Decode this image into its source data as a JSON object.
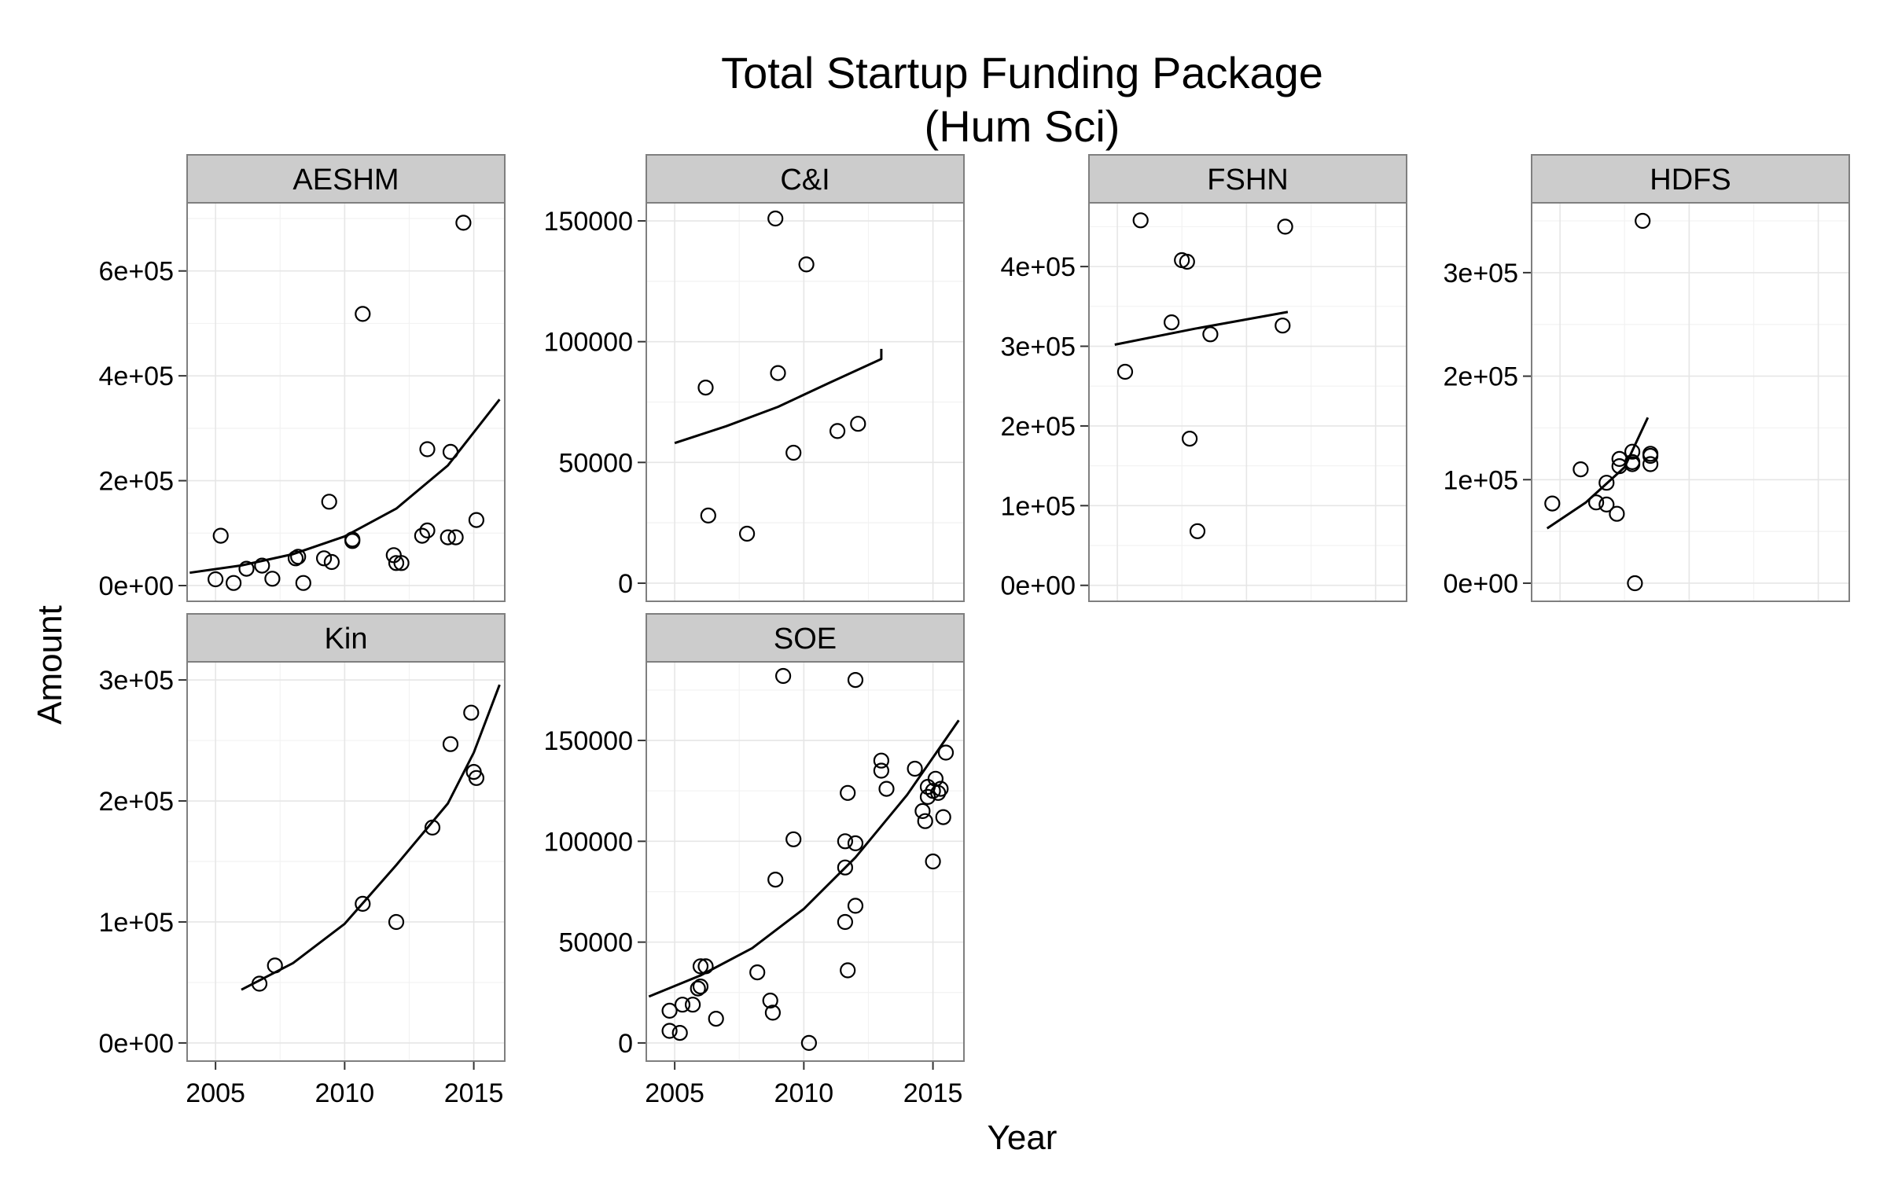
{
  "chart_data": {
    "type": "scatter",
    "title": "Total Startup Funding Package\n(Hum Sci)",
    "xlabel": "Year",
    "ylabel": "Amount",
    "grid": true,
    "xlim": [
      2003.9,
      2016.2
    ],
    "x_ticks": [
      2005,
      2010,
      2015
    ],
    "x_tick_labels": [
      "2005",
      "2010",
      "2015"
    ],
    "facets": [
      {
        "name": "AESHM",
        "ylim": [
          -30000,
          730000
        ],
        "y_ticks": [
          0,
          200000,
          400000,
          600000
        ],
        "y_tick_labels": [
          "0e+00",
          "2e+05",
          "4e+05",
          "6e+05"
        ],
        "points": [
          [
            2005.0,
            12000
          ],
          [
            2005.2,
            95000
          ],
          [
            2005.7,
            5000
          ],
          [
            2006.2,
            32000
          ],
          [
            2006.8,
            38000
          ],
          [
            2007.2,
            13000
          ],
          [
            2008.1,
            52000
          ],
          [
            2008.2,
            55000
          ],
          [
            2008.4,
            5000
          ],
          [
            2009.2,
            52000
          ],
          [
            2009.4,
            160000
          ],
          [
            2009.5,
            45000
          ],
          [
            2010.3,
            88000
          ],
          [
            2010.3,
            85000
          ],
          [
            2010.7,
            518000
          ],
          [
            2011.9,
            58000
          ],
          [
            2012.0,
            43000
          ],
          [
            2012.2,
            43000
          ],
          [
            2013.0,
            95000
          ],
          [
            2013.2,
            105000
          ],
          [
            2013.2,
            260000
          ],
          [
            2014.0,
            92000
          ],
          [
            2014.1,
            255000
          ],
          [
            2014.3,
            92000
          ],
          [
            2014.6,
            692000
          ],
          [
            2015.1,
            125000
          ]
        ],
        "fit": [
          [
            2004.0,
            24400
          ],
          [
            2006.0,
            38300
          ],
          [
            2008.0,
            60000
          ],
          [
            2010.0,
            93800
          ],
          [
            2012.0,
            146700
          ],
          [
            2014.0,
            229200
          ],
          [
            2016.0,
            355000
          ]
        ]
      },
      {
        "name": "C&I",
        "ylim": [
          -7500,
          157500
        ],
        "y_ticks": [
          0,
          50000,
          100000,
          150000
        ],
        "y_tick_labels": [
          "0",
          "50000",
          "100000",
          "150000"
        ],
        "points": [
          [
            2006.2,
            81000
          ],
          [
            2006.3,
            28000
          ],
          [
            2007.8,
            20500
          ],
          [
            2008.9,
            151000
          ],
          [
            2009.0,
            87000
          ],
          [
            2009.6,
            54000
          ],
          [
            2010.1,
            132000
          ],
          [
            2011.3,
            63000
          ],
          [
            2012.1,
            66000
          ]
        ],
        "fit": [
          [
            2005.0,
            58000
          ],
          [
            2007.0,
            65000
          ],
          [
            2009.0,
            73000
          ],
          [
            2011.0,
            83000
          ],
          [
            2013.0,
            92800
          ],
          [
            2013.0,
            97000
          ]
        ]
      },
      {
        "name": "FSHN",
        "ylim": [
          -20000,
          480000
        ],
        "y_ticks": [
          0,
          100000,
          200000,
          300000,
          400000
        ],
        "y_tick_labels": [
          "0e+00",
          "1e+05",
          "2e+05",
          "3e+05",
          "4e+05"
        ],
        "points": [
          [
            2005.3,
            268000
          ],
          [
            2005.9,
            458000
          ],
          [
            2007.1,
            330000
          ],
          [
            2007.5,
            408000
          ],
          [
            2007.7,
            406000
          ],
          [
            2007.8,
            184000
          ],
          [
            2008.1,
            68000
          ],
          [
            2008.6,
            315000
          ],
          [
            2011.4,
            326000
          ],
          [
            2011.5,
            450000
          ]
        ],
        "fit": [
          [
            2004.9,
            302000
          ],
          [
            2008.0,
            322000
          ],
          [
            2011.6,
            343000
          ]
        ]
      },
      {
        "name": "HDFS",
        "ylim": [
          -17500,
          367500
        ],
        "y_ticks": [
          0,
          100000,
          200000,
          300000
        ],
        "y_tick_labels": [
          "0e+00",
          "1e+05",
          "2e+05",
          "3e+05"
        ],
        "points": [
          [
            2004.7,
            77000
          ],
          [
            2005.8,
            110000
          ],
          [
            2006.4,
            78000
          ],
          [
            2006.8,
            97000
          ],
          [
            2006.8,
            76000
          ],
          [
            2007.2,
            67000
          ],
          [
            2007.3,
            113000
          ],
          [
            2007.3,
            120000
          ],
          [
            2007.8,
            127000
          ],
          [
            2007.8,
            117000
          ],
          [
            2007.8,
            115000
          ],
          [
            2007.9,
            0
          ],
          [
            2008.2,
            350000
          ],
          [
            2008.5,
            123000
          ],
          [
            2008.5,
            125000
          ],
          [
            2008.5,
            115000
          ]
        ],
        "fit": [
          [
            2004.5,
            53000
          ],
          [
            2006.0,
            78000
          ],
          [
            2007.5,
            112000
          ],
          [
            2008.4,
            160000
          ]
        ]
      },
      {
        "name": "Kin",
        "ylim": [
          -15000,
          315000
        ],
        "y_ticks": [
          0,
          100000,
          200000,
          300000
        ],
        "y_tick_labels": [
          "0e+00",
          "1e+05",
          "2e+05",
          "3e+05"
        ],
        "points": [
          [
            2006.7,
            49000
          ],
          [
            2007.3,
            64000
          ],
          [
            2010.7,
            115000
          ],
          [
            2012.0,
            100000
          ],
          [
            2013.4,
            178000
          ],
          [
            2014.1,
            247000
          ],
          [
            2014.9,
            273000
          ],
          [
            2015.0,
            224000
          ],
          [
            2015.1,
            219000
          ]
        ],
        "fit": [
          [
            2006.0,
            44000
          ],
          [
            2008.0,
            66000
          ],
          [
            2010.0,
            98500
          ],
          [
            2012.0,
            147000
          ],
          [
            2014.0,
            198000
          ],
          [
            2015.0,
            240000
          ],
          [
            2016.0,
            296000
          ]
        ]
      },
      {
        "name": "SOE",
        "ylim": [
          -9000,
          189000
        ],
        "y_ticks": [
          0,
          50000,
          100000,
          150000
        ],
        "y_tick_labels": [
          "0",
          "50000",
          "100000",
          "150000"
        ],
        "points": [
          [
            2004.8,
            16000
          ],
          [
            2004.8,
            6000
          ],
          [
            2005.2,
            5000
          ],
          [
            2005.3,
            19000
          ],
          [
            2005.7,
            19000
          ],
          [
            2005.9,
            27000
          ],
          [
            2006.0,
            28000
          ],
          [
            2006.0,
            38000
          ],
          [
            2006.2,
            38000
          ],
          [
            2006.6,
            12000
          ],
          [
            2008.2,
            35000
          ],
          [
            2008.7,
            21000
          ],
          [
            2008.8,
            15000
          ],
          [
            2008.9,
            81000
          ],
          [
            2009.2,
            182000
          ],
          [
            2009.6,
            101000
          ],
          [
            2010.2,
            0
          ],
          [
            2011.6,
            60000
          ],
          [
            2011.6,
            87000
          ],
          [
            2011.6,
            100000
          ],
          [
            2011.7,
            36000
          ],
          [
            2011.7,
            124000
          ],
          [
            2012.0,
            68000
          ],
          [
            2012.0,
            99000
          ],
          [
            2012.0,
            180000
          ],
          [
            2013.0,
            140000
          ],
          [
            2013.0,
            135000
          ],
          [
            2013.2,
            126000
          ],
          [
            2014.3,
            136000
          ],
          [
            2014.6,
            115000
          ],
          [
            2014.7,
            110000
          ],
          [
            2014.8,
            127000
          ],
          [
            2014.8,
            122000
          ],
          [
            2015.0,
            90000
          ],
          [
            2015.0,
            125000
          ],
          [
            2015.1,
            131000
          ],
          [
            2015.2,
            124000
          ],
          [
            2015.3,
            126000
          ],
          [
            2015.4,
            112000
          ],
          [
            2015.5,
            144000
          ]
        ],
        "fit": [
          [
            2004.0,
            23000
          ],
          [
            2006.0,
            33500
          ],
          [
            2008.0,
            47000
          ],
          [
            2010.0,
            66500
          ],
          [
            2012.0,
            92000
          ],
          [
            2014.0,
            123000
          ],
          [
            2016.0,
            160000
          ]
        ]
      }
    ]
  }
}
